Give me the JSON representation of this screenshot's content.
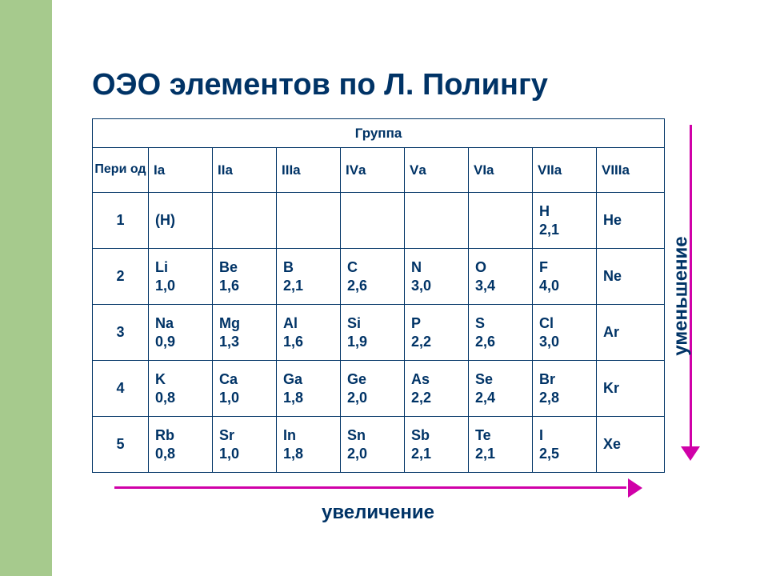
{
  "title": "ОЭО   элементов по Л. Полингу",
  "table": {
    "group_header": "Группа",
    "period_header": "Пери од",
    "groups": [
      "Iа",
      "IIа",
      "IIIа",
      "IVа",
      "Vа",
      "VIа",
      "VIIа",
      "VIIIа"
    ],
    "periods": [
      {
        "num": "1",
        "cells": [
          {
            "sym": "(H)",
            "val": ""
          },
          {
            "sym": "",
            "val": ""
          },
          {
            "sym": "",
            "val": ""
          },
          {
            "sym": "",
            "val": ""
          },
          {
            "sym": "",
            "val": ""
          },
          {
            "sym": "",
            "val": ""
          },
          {
            "sym": "H",
            "val": "2,1"
          },
          {
            "sym": "He",
            "val": ""
          }
        ]
      },
      {
        "num": "2",
        "cells": [
          {
            "sym": "Li",
            "val": "1,0"
          },
          {
            "sym": "Be",
            "val": "1,6"
          },
          {
            "sym": "B",
            "val": "2,1"
          },
          {
            "sym": "C",
            "val": "2,6"
          },
          {
            "sym": "N",
            "val": "3,0"
          },
          {
            "sym": "O",
            "val": "3,4"
          },
          {
            "sym": "F",
            "val": "4,0"
          },
          {
            "sym": "Ne",
            "val": ""
          }
        ]
      },
      {
        "num": "3",
        "cells": [
          {
            "sym": "Na",
            "val": "0,9"
          },
          {
            "sym": "Mg",
            "val": "1,3"
          },
          {
            "sym": "Al",
            "val": "1,6"
          },
          {
            "sym": "Si",
            "val": "1,9"
          },
          {
            "sym": "P",
            "val": "2,2"
          },
          {
            "sym": "S",
            "val": "2,6"
          },
          {
            "sym": "Cl",
            "val": "3,0"
          },
          {
            "sym": "Ar",
            "val": ""
          }
        ]
      },
      {
        "num": "4",
        "cells": [
          {
            "sym": "K",
            "val": "0,8"
          },
          {
            "sym": "Ca",
            "val": "1,0"
          },
          {
            "sym": "Ga",
            "val": "1,8"
          },
          {
            "sym": "Ge",
            "val": "2,0"
          },
          {
            "sym": "As",
            "val": "2,2"
          },
          {
            "sym": "Se",
            "val": "2,4"
          },
          {
            "sym": "Br",
            "val": "2,8"
          },
          {
            "sym": "Kr",
            "val": ""
          }
        ]
      },
      {
        "num": "5",
        "cells": [
          {
            "sym": "Rb",
            "val": "0,8"
          },
          {
            "sym": "Sr",
            "val": "1,0"
          },
          {
            "sym": "In",
            "val": "1,8"
          },
          {
            "sym": "Sn",
            "val": "2,0"
          },
          {
            "sym": "Sb",
            "val": "2,1"
          },
          {
            "sym": "Te",
            "val": "2,1"
          },
          {
            "sym": "I",
            "val": "2,5"
          },
          {
            "sym": "Xe",
            "val": ""
          }
        ]
      }
    ]
  },
  "labels": {
    "decrease": "уменьшение",
    "increase": "увеличение"
  },
  "style": {
    "accent_color": "#a6ca8d",
    "text_color": "#003366",
    "arrow_color": "#d000a8",
    "border_color": "#003366",
    "title_fontsize": 38,
    "label_fontsize": 24,
    "cell_fontsize": 18,
    "hdr_fontsize": 17
  }
}
